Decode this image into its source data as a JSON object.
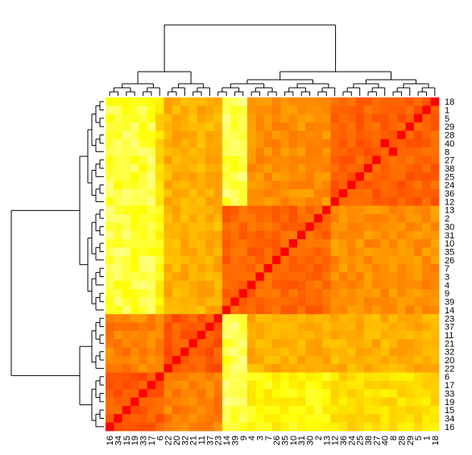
{
  "chart_data": {
    "type": "heatmap",
    "title": "",
    "xlabel": "",
    "ylabel": "",
    "column_labels": [
      "16",
      "34",
      "15",
      "19",
      "33",
      "17",
      "6",
      "22",
      "20",
      "32",
      "21",
      "11",
      "37",
      "23",
      "14",
      "39",
      "9",
      "4",
      "3",
      "7",
      "26",
      "35",
      "10",
      "31",
      "30",
      "2",
      "13",
      "12",
      "36",
      "24",
      "25",
      "38",
      "27",
      "40",
      "8",
      "28",
      "29",
      "5",
      "1",
      "18"
    ],
    "row_labels": [
      "18",
      "1",
      "5",
      "29",
      "28",
      "40",
      "8",
      "27",
      "38",
      "25",
      "24",
      "36",
      "12",
      "13",
      "2",
      "30",
      "31",
      "10",
      "35",
      "26",
      "7",
      "3",
      "4",
      "9",
      "39",
      "14",
      "23",
      "37",
      "11",
      "21",
      "32",
      "20",
      "22",
      "6",
      "17",
      "33",
      "19",
      "15",
      "34",
      "16"
    ],
    "color_scale": {
      "name": "heat",
      "low_value_color": "#ff0000",
      "mid_value_color": "#ffa500",
      "high_value_color": "#ffff80",
      "note_direction": "diagonal (self-similarity) shown in red"
    },
    "dendrograms": {
      "rows": "left",
      "columns": "top"
    }
  }
}
